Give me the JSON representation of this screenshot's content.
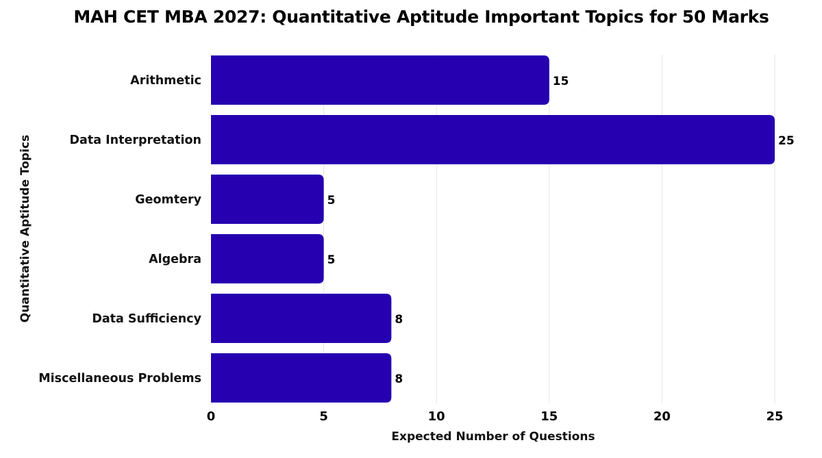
{
  "chart_data": {
    "type": "bar",
    "orientation": "horizontal",
    "title": "MAH CET MBA 2027: Quantitative Aptitude Important Topics for 50 Marks",
    "xlabel": "Expected Number of Questions",
    "ylabel": "Quantitative Aptitude Topics",
    "categories": [
      "Arithmetic",
      "Data Interpretation",
      "Geomtery",
      "Algebra",
      "Data Sufficiency",
      "Miscellaneous Problems"
    ],
    "values": [
      15,
      25,
      5,
      5,
      8,
      8
    ],
    "xlim": [
      0,
      25
    ],
    "xticks": [
      0,
      5,
      10,
      15,
      20,
      25
    ],
    "grid": true,
    "legend": "none",
    "colors": {
      "bar": "#2600B0"
    }
  }
}
